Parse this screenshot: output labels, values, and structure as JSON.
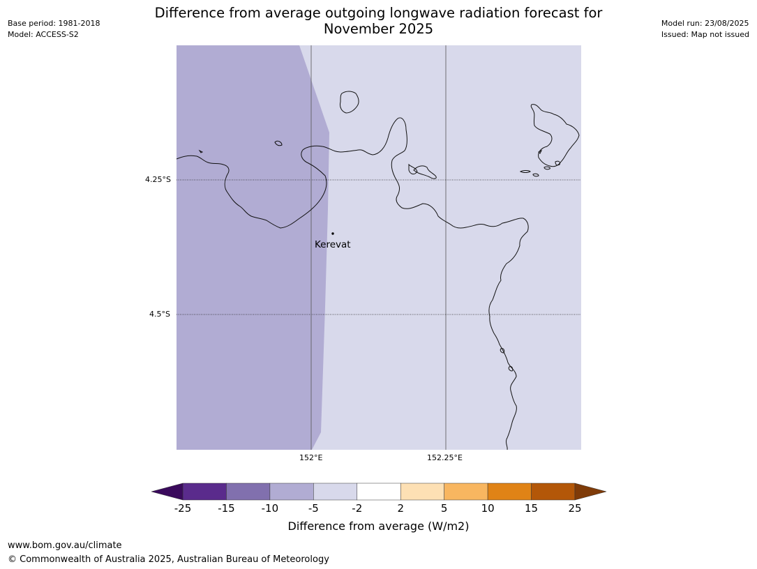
{
  "title_line1": "Difference from average outgoing longwave radiation forecast for",
  "title_line2": "November 2025",
  "meta_left": {
    "base_period": "Base period: 1981-2018",
    "model": "Model: ACCESS-S2"
  },
  "meta_right": {
    "model_run": "Model run: 23/08/2025",
    "issued": "Issued: Map not issued"
  },
  "map": {
    "lat_labels": [
      "4.25°S",
      "4.5°S"
    ],
    "lon_labels": [
      "152°E",
      "152.25°E"
    ],
    "place": "Kerevat",
    "colors": {
      "band_-10_-5": "#b1acd3",
      "band_-5_-2": "#d8d9eb",
      "coast": "#111111"
    }
  },
  "colorbar": {
    "title": "Difference from average (W/m2)",
    "ticks": [
      "-25",
      "-15",
      "-10",
      "-5",
      "-2",
      "2",
      "5",
      "10",
      "15",
      "25"
    ],
    "colors": [
      "#5a2b8c",
      "#8170ae",
      "#b1acd3",
      "#d8d9eb",
      "#ffffff",
      "#fde0b4",
      "#f8b660",
      "#e08316",
      "#b35708"
    ],
    "extend_low": "#3a0a5c",
    "extend_high": "#7f3b08"
  },
  "footer": {
    "url": "www.bom.gov.au/climate",
    "copyright": "© Commonwealth of Australia 2025, Australian Bureau of Meteorology"
  }
}
